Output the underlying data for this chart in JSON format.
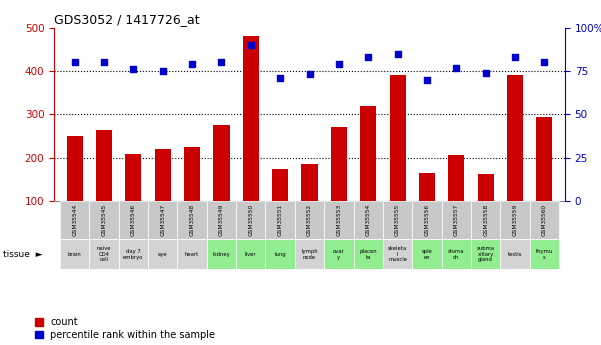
{
  "title": "GDS3052 / 1417726_at",
  "gsm_labels": [
    "GSM35544",
    "GSM35545",
    "GSM35546",
    "GSM35547",
    "GSM35548",
    "GSM35549",
    "GSM35550",
    "GSM35551",
    "GSM35552",
    "GSM35553",
    "GSM35554",
    "GSM35555",
    "GSM35556",
    "GSM35557",
    "GSM35558",
    "GSM35559",
    "GSM35560"
  ],
  "tissue_labels": [
    "brain",
    "naive\nCD4\ncell",
    "day 7\nembryо",
    "eye",
    "heart",
    "kidney",
    "liver",
    "lung",
    "lymph\nnode",
    "ovar\ny",
    "placen\nta",
    "skeleta\nl\nmuscle",
    "sple\nen",
    "stoma\nch",
    "subma\nxillary\ngland",
    "testis",
    "thymu\ns"
  ],
  "tissue_colors": [
    "#d3d3d3",
    "#d3d3d3",
    "#d3d3d3",
    "#d3d3d3",
    "#d3d3d3",
    "#90ee90",
    "#90ee90",
    "#90ee90",
    "#d3d3d3",
    "#90ee90",
    "#90ee90",
    "#d3d3d3",
    "#90ee90",
    "#90ee90",
    "#90ee90",
    "#d3d3d3",
    "#90ee90"
  ],
  "counts": [
    250,
    265,
    210,
    220,
    225,
    275,
    480,
    175,
    185,
    270,
    320,
    390,
    165,
    207,
    163,
    390,
    295
  ],
  "percentiles": [
    80,
    80,
    76,
    75,
    79,
    80,
    90,
    71,
    73,
    79,
    83,
    85,
    70,
    77,
    74,
    83,
    80
  ],
  "count_color": "#cc0000",
  "percentile_color": "#0000cc",
  "bar_width": 0.55,
  "ylim_left": [
    100,
    500
  ],
  "ylim_right": [
    0,
    100
  ],
  "yticks_left": [
    100,
    200,
    300,
    400,
    500
  ],
  "yticks_right": [
    0,
    25,
    50,
    75,
    100
  ],
  "grid_yticks": [
    200,
    300,
    400
  ],
  "grid_color": "black",
  "bg_color": "white",
  "gsm_bg_color": "#c8c8c8",
  "legend_count": "count",
  "legend_percentile": "percentile rank within the sample"
}
